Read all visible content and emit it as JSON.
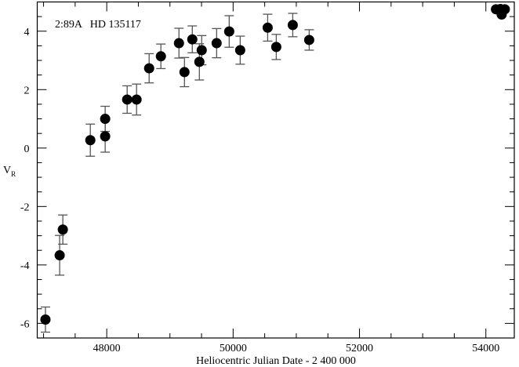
{
  "chart_data": {
    "type": "scatter",
    "title": "",
    "annotation": "2:89A   HD 135117",
    "xlabel": "Heliocentric Julian Date - 2 400 000",
    "ylabel": "V",
    "ylabel_subscript": "R",
    "xlim": [
      46900,
      54450
    ],
    "ylim": [
      -6.5,
      5.0
    ],
    "x_major_ticks": [
      48000,
      50000,
      52000,
      54000
    ],
    "x_tick_labels": [
      "48000",
      "50000",
      "52000",
      "54000"
    ],
    "x_minor_step": 500,
    "y_major_ticks": [
      -6,
      -4,
      -2,
      0,
      2,
      4
    ],
    "y_tick_labels": [
      "-6",
      "-4",
      "-2",
      "0",
      "2",
      "4"
    ],
    "y_minor_step": 0.5,
    "grid": false,
    "marker_color": "#000000",
    "errorbar_color": "#555555",
    "points": [
      {
        "x": 47030,
        "y": -5.87,
        "err": 0.43
      },
      {
        "x": 47255,
        "y": -3.67,
        "err": 0.68
      },
      {
        "x": 47305,
        "y": -2.79,
        "err": 0.5
      },
      {
        "x": 47740,
        "y": 0.27,
        "err": 0.55
      },
      {
        "x": 47975,
        "y": 1.0,
        "err": 0.43
      },
      {
        "x": 47975,
        "y": 0.4,
        "err": 0.54
      },
      {
        "x": 48323,
        "y": 1.66,
        "err": 0.47
      },
      {
        "x": 48472,
        "y": 1.66,
        "err": 0.53
      },
      {
        "x": 48671,
        "y": 2.73,
        "err": 0.5
      },
      {
        "x": 48857,
        "y": 3.14,
        "err": 0.42
      },
      {
        "x": 49143,
        "y": 3.59,
        "err": 0.51
      },
      {
        "x": 49230,
        "y": 2.6,
        "err": 0.5
      },
      {
        "x": 49354,
        "y": 3.72,
        "err": 0.46
      },
      {
        "x": 49466,
        "y": 2.95,
        "err": 0.62
      },
      {
        "x": 49503,
        "y": 3.35,
        "err": 0.5
      },
      {
        "x": 49739,
        "y": 3.59,
        "err": 0.5
      },
      {
        "x": 49938,
        "y": 3.99,
        "err": 0.54
      },
      {
        "x": 50112,
        "y": 3.35,
        "err": 0.48
      },
      {
        "x": 50547,
        "y": 4.12,
        "err": 0.46
      },
      {
        "x": 50683,
        "y": 3.46,
        "err": 0.43
      },
      {
        "x": 50944,
        "y": 4.21,
        "err": 0.4
      },
      {
        "x": 51204,
        "y": 3.7,
        "err": 0.35
      },
      {
        "x": 54160,
        "y": 4.75,
        "err": 0.0
      },
      {
        "x": 54230,
        "y": 4.76,
        "err": 0.0
      },
      {
        "x": 54300,
        "y": 4.75,
        "err": 0.0
      },
      {
        "x": 54250,
        "y": 4.57,
        "err": 0.0
      }
    ]
  }
}
